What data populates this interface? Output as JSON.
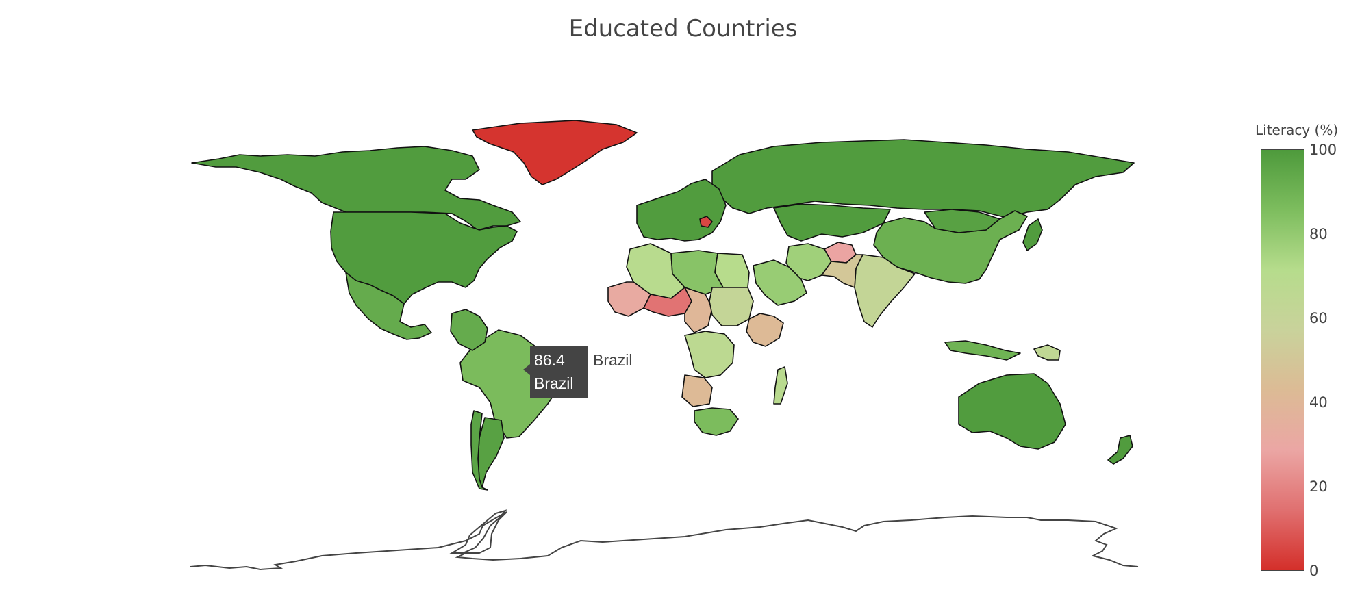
{
  "chart_data": {
    "type": "choropleth",
    "title": "Educated Countries",
    "colorbar": {
      "title": "Literacy (%)",
      "range": [
        0,
        100
      ],
      "ticks": [
        "100",
        "80",
        "60",
        "40",
        "20",
        "0"
      ],
      "colorscale": [
        "#d42f2a",
        "#e07070",
        "#eba6a4",
        "#dcbb95",
        "#c9d29b",
        "#b6dc8c",
        "#7dbd5e",
        "#4e9a3c"
      ]
    },
    "countries": [
      {
        "name": "Greenland",
        "literacy": 1
      },
      {
        "name": "Canada",
        "literacy": 99
      },
      {
        "name": "United States",
        "literacy": 99
      },
      {
        "name": "Mexico",
        "literacy": 93
      },
      {
        "name": "Brazil",
        "literacy": 86.4
      },
      {
        "name": "Colombia",
        "literacy": 93
      },
      {
        "name": "Argentina",
        "literacy": 97
      },
      {
        "name": "Chile",
        "literacy": 96
      },
      {
        "name": "Russia",
        "literacy": 99
      },
      {
        "name": "China",
        "literacy": 91
      },
      {
        "name": "India",
        "literacy": 62
      },
      {
        "name": "Australia",
        "literacy": 99
      },
      {
        "name": "Indonesia",
        "literacy": 90
      },
      {
        "name": "Mongolia",
        "literacy": 97
      },
      {
        "name": "Kazakhstan",
        "literacy": 99
      },
      {
        "name": "Iran",
        "literacy": 77
      },
      {
        "name": "Saudi Arabia",
        "literacy": 79
      },
      {
        "name": "Afghanistan",
        "literacy": 28
      },
      {
        "name": "Pakistan",
        "literacy": 50
      },
      {
        "name": "Algeria",
        "literacy": 70
      },
      {
        "name": "Libya",
        "literacy": 83
      },
      {
        "name": "Egypt",
        "literacy": 71
      },
      {
        "name": "Mali",
        "literacy": 31
      },
      {
        "name": "Niger",
        "literacy": 15
      },
      {
        "name": "Chad",
        "literacy": 40
      },
      {
        "name": "Sudan",
        "literacy": 61
      },
      {
        "name": "Ethiopia",
        "literacy": 42
      },
      {
        "name": "DR Congo",
        "literacy": 67
      },
      {
        "name": "Angola",
        "literacy": 42
      },
      {
        "name": "South Africa",
        "literacy": 86
      },
      {
        "name": "Madagascar",
        "literacy": 69
      },
      {
        "name": "Europe",
        "literacy": 99
      },
      {
        "name": "Bosnia",
        "literacy": 5
      },
      {
        "name": "Japan",
        "literacy": 99
      },
      {
        "name": "New Zealand",
        "literacy": 99
      },
      {
        "name": "Papua New Guinea",
        "literacy": 64
      }
    ],
    "hover": {
      "value_label": "86.4",
      "name_label": "Brazil",
      "side_label": "Brazil"
    }
  }
}
